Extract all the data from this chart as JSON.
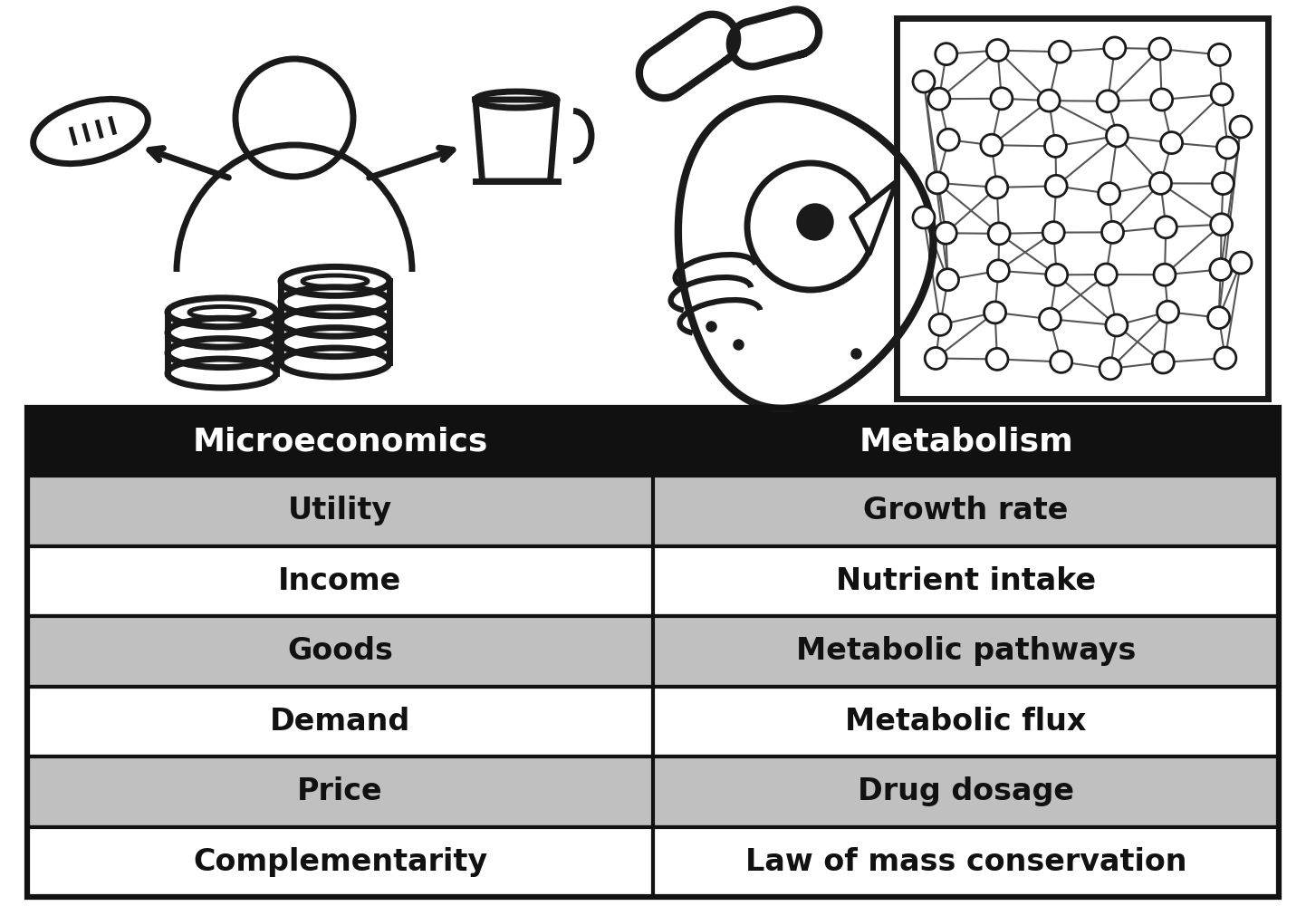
{
  "header": [
    "Microeconomics",
    "Metabolism"
  ],
  "rows": [
    [
      "Utility",
      "Growth rate"
    ],
    [
      "Income",
      "Nutrient intake"
    ],
    [
      "Goods",
      "Metabolic pathways"
    ],
    [
      "Demand",
      "Metabolic flux"
    ],
    [
      "Price",
      "Drug dosage"
    ],
    [
      "Complementarity",
      "Law of mass conservation"
    ]
  ],
  "header_bg": "#111111",
  "header_fg": "#ffffff",
  "row_bg_odd": "#c0c0c0",
  "row_bg_even": "#ffffff",
  "border_color": "#111111",
  "text_color": "#111111",
  "fig_bg": "#ffffff",
  "header_fontsize": 26,
  "cell_fontsize": 24,
  "border_width": 3.0
}
